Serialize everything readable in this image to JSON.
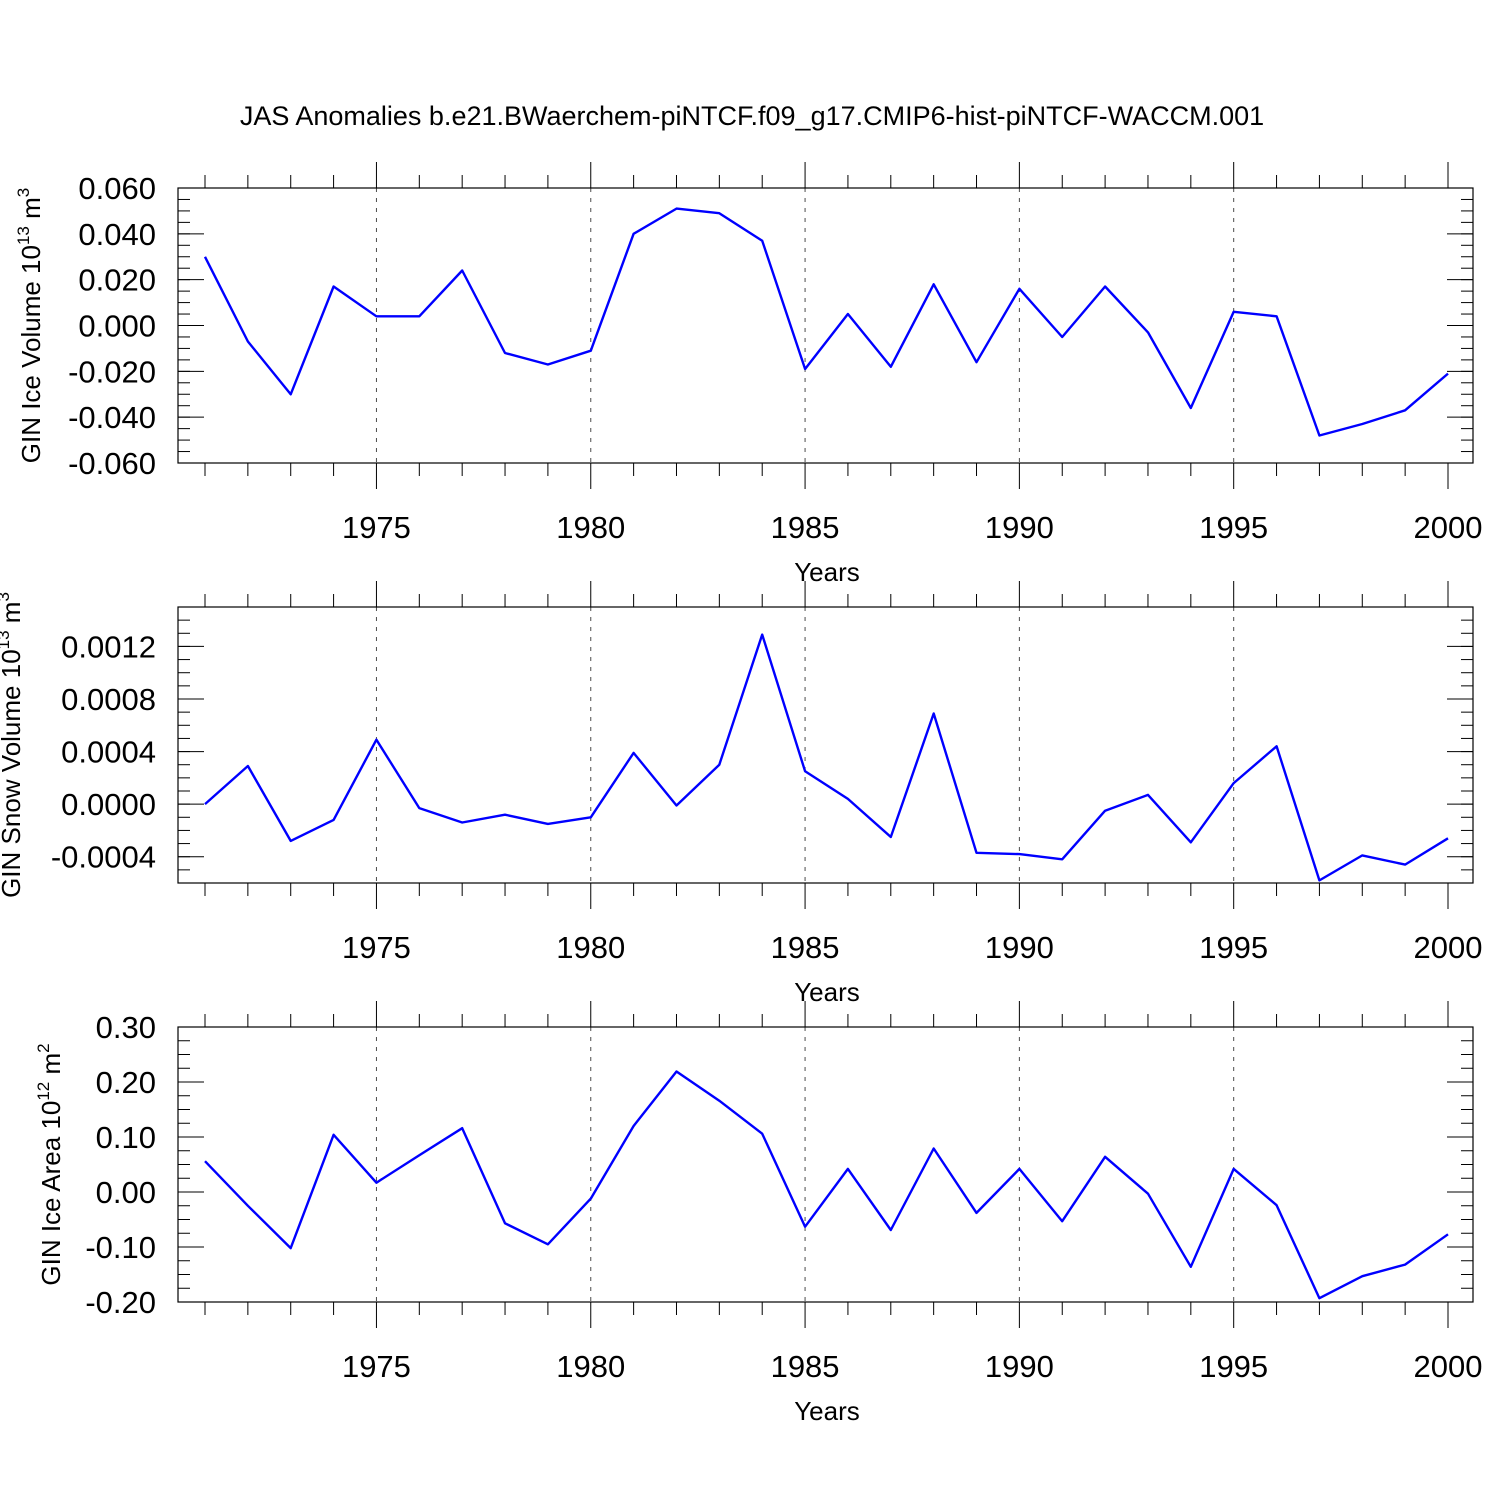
{
  "title": "JAS Anomalies b.e21.BWaerchem-piNTCF.f09_g17.CMIP6-hist-piNTCF-WACCM.001",
  "colors": {
    "line": "#0000ff",
    "axis": "#000000",
    "grid": "#000000"
  },
  "chart_data": [
    {
      "type": "line",
      "ylabel": {
        "main": "GIN Ice Volume 10",
        "sup": "13",
        "unit": " m",
        "unit_sup": "3"
      },
      "xlabel": "Years",
      "xlim": [
        1971,
        2000
      ],
      "ylim": [
        -0.06,
        0.06
      ],
      "x_ticks": [
        "1975",
        "1980",
        "1985",
        "1990",
        "1995",
        "2000"
      ],
      "y_ticks": [
        "-0.060",
        "-0.040",
        "-0.020",
        "0.000",
        "0.020",
        "0.040",
        "0.060"
      ],
      "grid": "vertical dashed at major x ticks",
      "series": [
        {
          "x": [
            1971,
            1972,
            1973,
            1974,
            1975,
            1976,
            1977,
            1978,
            1979,
            1980,
            1981,
            1982,
            1983,
            1984,
            1985,
            1986,
            1987,
            1988,
            1989,
            1990,
            1991,
            1992,
            1993,
            1994,
            1995,
            1996,
            1997,
            1998,
            1999,
            2000
          ],
          "values": [
            0.03,
            -0.007,
            -0.03,
            0.017,
            0.004,
            0.004,
            0.024,
            -0.012,
            -0.017,
            -0.011,
            0.04,
            0.051,
            0.049,
            0.037,
            -0.019,
            0.005,
            -0.018,
            0.018,
            -0.016,
            0.016,
            -0.005,
            0.017,
            -0.003,
            -0.036,
            0.006,
            0.004,
            -0.048,
            -0.043,
            -0.037,
            -0.021
          ]
        }
      ]
    },
    {
      "type": "line",
      "ylabel": {
        "main": "GIN Snow Volume 10",
        "sup": "13",
        "unit": " m",
        "unit_sup": "3"
      },
      "xlabel": "Years",
      "xlim": [
        1971,
        2000
      ],
      "ylim": [
        -0.0006,
        0.0015
      ],
      "x_ticks": [
        "1975",
        "1980",
        "1985",
        "1990",
        "1995",
        "2000"
      ],
      "y_ticks": [
        "-0.0004",
        "0.0000",
        "0.0004",
        "0.0008",
        "0.0012"
      ],
      "grid": "vertical dashed at major x ticks",
      "series": [
        {
          "x": [
            1971,
            1972,
            1973,
            1974,
            1975,
            1976,
            1977,
            1978,
            1979,
            1980,
            1981,
            1982,
            1983,
            1984,
            1985,
            1986,
            1987,
            1988,
            1989,
            1990,
            1991,
            1992,
            1993,
            1994,
            1995,
            1996,
            1997,
            1998,
            1999,
            2000
          ],
          "values": [
            0.0,
            0.00029,
            -0.00028,
            -0.00012,
            0.00049,
            -3e-05,
            -0.00014,
            -8e-05,
            -0.00015,
            -0.0001,
            0.00039,
            -1e-05,
            0.0003,
            0.00129,
            0.00025,
            4e-05,
            -0.00025,
            0.00069,
            -0.00037,
            -0.00038,
            -0.00042,
            -5e-05,
            7e-05,
            -0.00029,
            0.00016,
            0.00044,
            -0.00058,
            -0.00039,
            -0.00046,
            -0.00026
          ]
        }
      ]
    },
    {
      "type": "line",
      "ylabel": {
        "main": "GIN Ice Area 10",
        "sup": "12",
        "unit": " m",
        "unit_sup": "2"
      },
      "xlabel": "Years",
      "xlim": [
        1971,
        2000
      ],
      "ylim": [
        -0.2,
        0.3
      ],
      "x_ticks": [
        "1975",
        "1980",
        "1985",
        "1990",
        "1995",
        "2000"
      ],
      "y_ticks": [
        "-0.20",
        "-0.10",
        "0.00",
        "0.10",
        "0.20",
        "0.30"
      ],
      "grid": "vertical dashed at major x ticks",
      "series": [
        {
          "x": [
            1971,
            1972,
            1973,
            1974,
            1975,
            1976,
            1977,
            1978,
            1979,
            1980,
            1981,
            1982,
            1983,
            1984,
            1985,
            1986,
            1987,
            1988,
            1989,
            1990,
            1991,
            1992,
            1993,
            1994,
            1995,
            1996,
            1997,
            1998,
            1999,
            2000
          ],
          "values": [
            0.056,
            -0.025,
            -0.102,
            0.104,
            0.017,
            0.067,
            0.116,
            -0.057,
            -0.095,
            -0.012,
            0.12,
            0.219,
            0.166,
            0.106,
            -0.063,
            0.042,
            -0.069,
            0.079,
            -0.038,
            0.042,
            -0.053,
            0.064,
            -0.003,
            -0.136,
            0.042,
            -0.024,
            -0.193,
            -0.153,
            -0.132,
            -0.077
          ]
        }
      ]
    }
  ]
}
